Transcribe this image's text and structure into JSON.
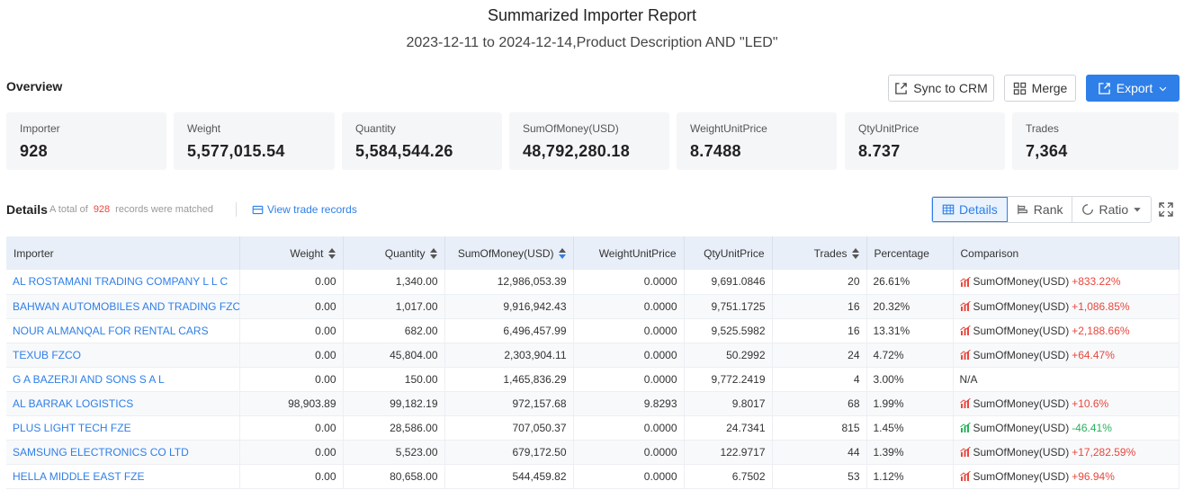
{
  "report": {
    "title": "Summarized Importer Report",
    "subtitle": "2023-12-11 to 2024-12-14,Product Description AND \"LED\""
  },
  "overview": {
    "label": "Overview",
    "buttons": {
      "sync": "Sync to CRM",
      "merge": "Merge",
      "export": "Export"
    },
    "cards": [
      {
        "label": "Importer",
        "value": "928"
      },
      {
        "label": "Weight",
        "value": "5,577,015.54"
      },
      {
        "label": "Quantity",
        "value": "5,584,544.26"
      },
      {
        "label": "SumOfMoney(USD)",
        "value": "48,792,280.18"
      },
      {
        "label": "WeightUnitPrice",
        "value": "8.7488"
      },
      {
        "label": "QtyUnitPrice",
        "value": "8.737"
      },
      {
        "label": "Trades",
        "value": "7,364"
      }
    ]
  },
  "details": {
    "title": "Details",
    "prefix": "A total of",
    "count": "928",
    "suffix": "records were matched",
    "view_link": "View trade records",
    "views": {
      "details": "Details",
      "rank": "Rank",
      "ratio": "Ratio"
    }
  },
  "table": {
    "headers": [
      "Importer",
      "Weight",
      "Quantity",
      "SumOfMoney(USD)",
      "WeightUnitPrice",
      "QtyUnitPrice",
      "Trades",
      "Percentage",
      "Comparison"
    ],
    "rows": [
      {
        "importer": "AL ROSTAMANI TRADING COMPANY L L C",
        "weight": "0.00",
        "quantity": "1,340.00",
        "sum": "12,986,053.39",
        "wup": "0.0000",
        "qup": "9,691.0846",
        "trades": "20",
        "pct": "26.61%",
        "cmp_label": "SumOfMoney(USD)",
        "cmp_value": "+833.22%",
        "trend": "up"
      },
      {
        "importer": "BAHWAN AUTOMOBILES AND TRADING FZCO",
        "weight": "0.00",
        "quantity": "1,017.00",
        "sum": "9,916,942.43",
        "wup": "0.0000",
        "qup": "9,751.1725",
        "trades": "16",
        "pct": "20.32%",
        "cmp_label": "SumOfMoney(USD)",
        "cmp_value": "+1,086.85%",
        "trend": "up"
      },
      {
        "importer": "NOUR ALMANQAL FOR RENTAL CARS",
        "weight": "0.00",
        "quantity": "682.00",
        "sum": "6,496,457.99",
        "wup": "0.0000",
        "qup": "9,525.5982",
        "trades": "16",
        "pct": "13.31%",
        "cmp_label": "SumOfMoney(USD)",
        "cmp_value": "+2,188.66%",
        "trend": "up"
      },
      {
        "importer": "TEXUB FZCO",
        "weight": "0.00",
        "quantity": "45,804.00",
        "sum": "2,303,904.11",
        "wup": "0.0000",
        "qup": "50.2992",
        "trades": "24",
        "pct": "4.72%",
        "cmp_label": "SumOfMoney(USD)",
        "cmp_value": "+64.47%",
        "trend": "up"
      },
      {
        "importer": "G A BAZERJI AND SONS S A L",
        "weight": "0.00",
        "quantity": "150.00",
        "sum": "1,465,836.29",
        "wup": "0.0000",
        "qup": "9,772.2419",
        "trades": "4",
        "pct": "3.00%",
        "cmp_label": "N/A",
        "cmp_value": "",
        "trend": "none"
      },
      {
        "importer": "AL BARRAK LOGISTICS",
        "weight": "98,903.89",
        "quantity": "99,182.19",
        "sum": "972,157.68",
        "wup": "9.8293",
        "qup": "9.8017",
        "trades": "68",
        "pct": "1.99%",
        "cmp_label": "SumOfMoney(USD)",
        "cmp_value": "+10.6%",
        "trend": "up"
      },
      {
        "importer": "PLUS LIGHT TECH FZE",
        "weight": "0.00",
        "quantity": "28,586.00",
        "sum": "707,050.37",
        "wup": "0.0000",
        "qup": "24.7341",
        "trades": "815",
        "pct": "1.45%",
        "cmp_label": "SumOfMoney(USD)",
        "cmp_value": "-46.41%",
        "trend": "down"
      },
      {
        "importer": "SAMSUNG ELECTRONICS CO LTD",
        "weight": "0.00",
        "quantity": "5,523.00",
        "sum": "679,172.50",
        "wup": "0.0000",
        "qup": "122.9717",
        "trades": "44",
        "pct": "1.39%",
        "cmp_label": "SumOfMoney(USD)",
        "cmp_value": "+17,282.59%",
        "trend": "up"
      },
      {
        "importer": "HELLA MIDDLE EAST FZE",
        "weight": "0.00",
        "quantity": "80,658.00",
        "sum": "544,459.82",
        "wup": "0.0000",
        "qup": "6.7502",
        "trades": "53",
        "pct": "1.12%",
        "cmp_label": "SumOfMoney(USD)",
        "cmp_value": "+96.94%",
        "trend": "up"
      }
    ]
  },
  "colors": {
    "accent": "#2f7fe8",
    "up": "#e8473c",
    "down": "#27b25d",
    "header_bg": "#e9eff8",
    "card_bg": "#f5f6f8"
  }
}
